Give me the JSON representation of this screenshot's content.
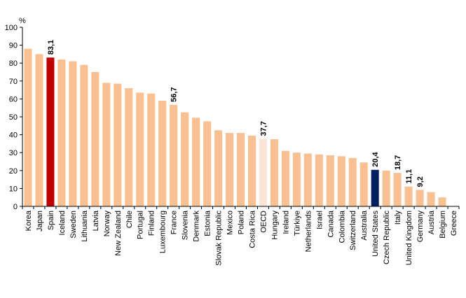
{
  "chart_data": {
    "type": "bar",
    "unit_label": "%",
    "ylim": [
      0,
      100
    ],
    "yticks": [
      0,
      10,
      20,
      30,
      40,
      50,
      60,
      70,
      80,
      90,
      100
    ],
    "grid": false,
    "legend": "none",
    "colors": {
      "default": "#FAC090",
      "highlight_spain": "#C00000",
      "highlight_oecd": "#FCE4D6",
      "highlight_us": "#002060"
    },
    "categories": [
      "Korea",
      "Japan",
      "Spain",
      "Iceland",
      "Sweden",
      "Lithuania",
      "Latvia",
      "Norway",
      "New Zealand",
      "Chile",
      "Portugal",
      "Finland",
      "Luxembourg",
      "France",
      "Slovenia",
      "Denmark",
      "Estonia",
      "Slovak Republic",
      "Mexico",
      "Poland",
      "Costa Rica",
      "OECD",
      "Hungary",
      "Ireland",
      "Türkiye",
      "Netherlands",
      "Israel",
      "Canada",
      "Colombia",
      "Switzerland",
      "Australia",
      "United States",
      "Czech Republic",
      "Italy",
      "United Kingdom",
      "Germany",
      "Austria",
      "Belgium",
      "Greece"
    ],
    "values": [
      88,
      85,
      83.1,
      82,
      81,
      79,
      75,
      69,
      68.5,
      66,
      63.5,
      63,
      59,
      56.7,
      52.5,
      49.5,
      47.5,
      42.5,
      41,
      41,
      39.5,
      37.7,
      37.5,
      31,
      30,
      29.5,
      29,
      28.5,
      28,
      27,
      24.5,
      20.4,
      20,
      18.7,
      11.1,
      9.2,
      8,
      5,
      0
    ],
    "bar_colors": [
      "default",
      "default",
      "highlight_spain",
      "default",
      "default",
      "default",
      "default",
      "default",
      "default",
      "default",
      "default",
      "default",
      "default",
      "default",
      "default",
      "default",
      "default",
      "default",
      "default",
      "default",
      "default",
      "highlight_oecd",
      "default",
      "default",
      "default",
      "default",
      "default",
      "default",
      "default",
      "default",
      "default",
      "highlight_us",
      "default",
      "default",
      "default",
      "default",
      "default",
      "default",
      "default"
    ],
    "data_labels": [
      {
        "category": "Spain",
        "text": "83,1"
      },
      {
        "category": "France",
        "text": "56,7"
      },
      {
        "category": "OECD",
        "text": "37,7"
      },
      {
        "category": "United States",
        "text": "20,4"
      },
      {
        "category": "Italy",
        "text": "18,7"
      },
      {
        "category": "United Kingdom",
        "text": "11,1"
      },
      {
        "category": "Germany",
        "text": "9,2"
      }
    ]
  }
}
